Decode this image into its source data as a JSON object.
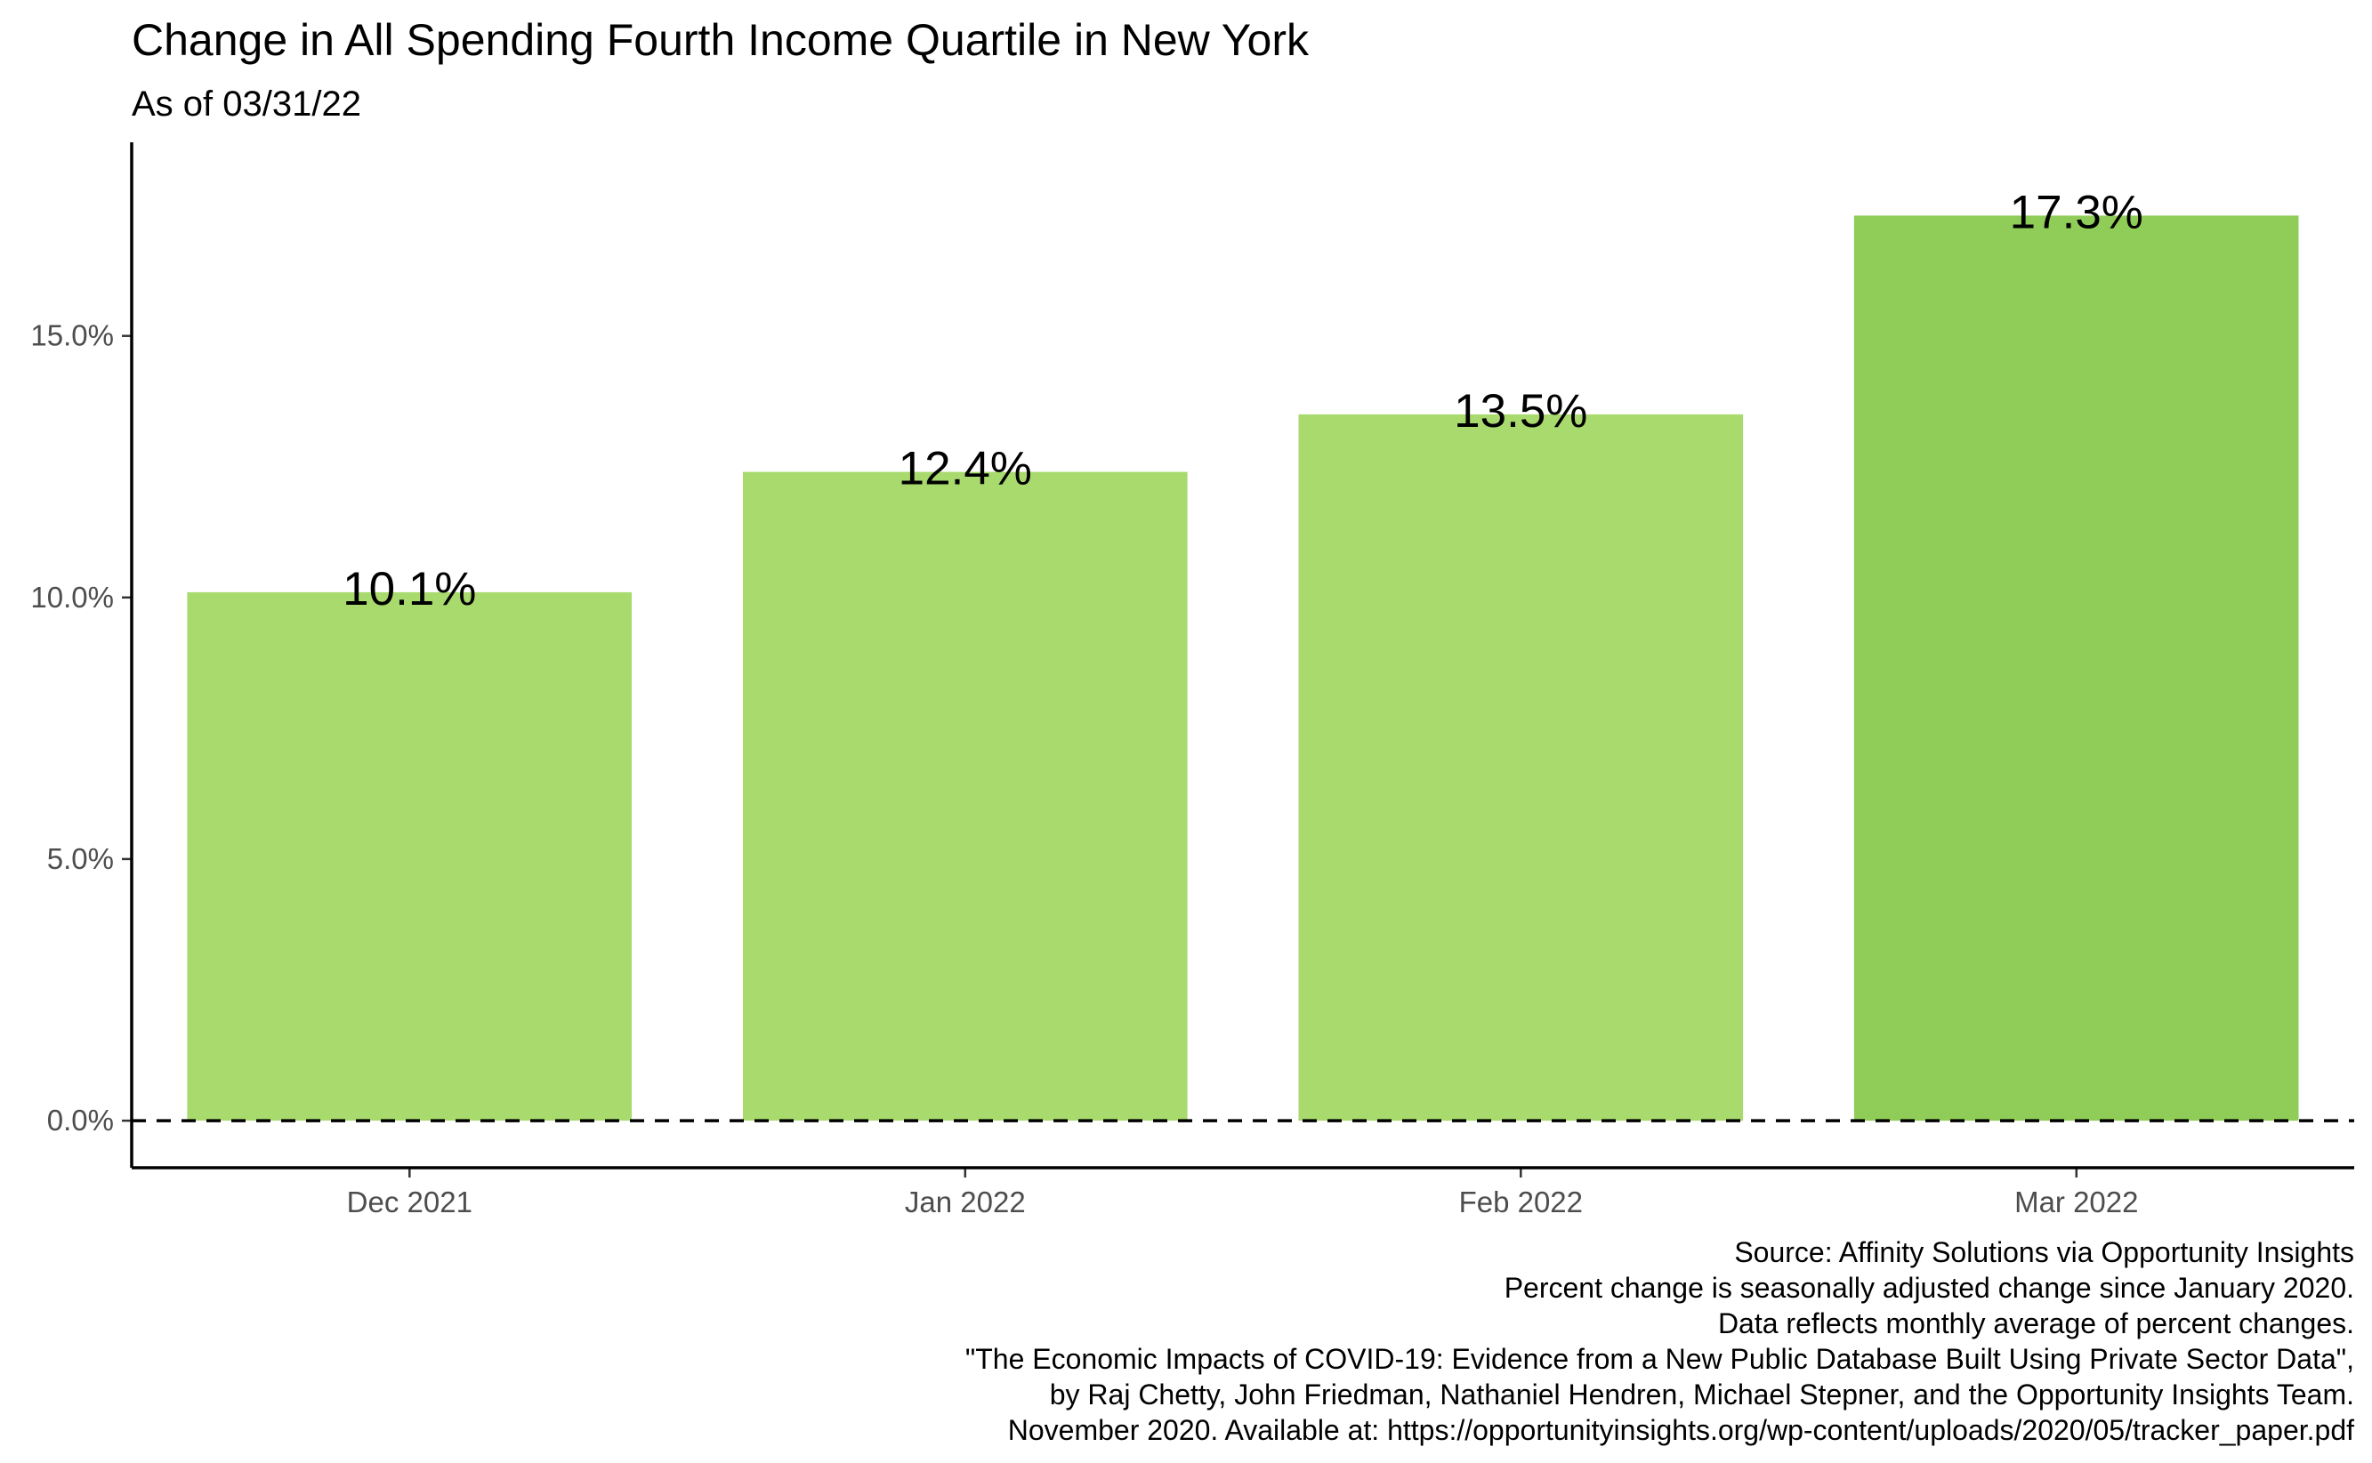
{
  "chart_data": {
    "type": "bar",
    "title": "Change in All Spending Fourth Income Quartile in New York",
    "subtitle": "As of 03/31/22",
    "categories": [
      "Dec 2021",
      "Jan 2022",
      "Feb 2022",
      "Mar 2022"
    ],
    "values": [
      10.1,
      12.4,
      13.5,
      17.3
    ],
    "value_labels": [
      "10.1%",
      "12.4%",
      "13.5%",
      "17.3%"
    ],
    "bar_colors": [
      "#a8da6e",
      "#a8da6e",
      "#a8da6e",
      "#8fcd58"
    ],
    "yticks": [
      0,
      5,
      10,
      15
    ],
    "ytick_labels": [
      "0.0%",
      "5.0%",
      "10.0%",
      "15.0%"
    ],
    "ylim": [
      -0.9,
      18.7
    ],
    "reference_line": {
      "y": 0,
      "style": "dashed"
    },
    "xlabel": "",
    "ylabel": "",
    "grid": false,
    "caption_lines": [
      "Source: Affinity Solutions via Opportunity Insights",
      "Percent change is seasonally adjusted change since January 2020.",
      "Data reflects monthly average of percent changes.",
      "\"The Economic Impacts of COVID-19: Evidence from a New Public Database Built Using Private Sector Data\",",
      "by Raj Chetty, John Friedman, Nathaniel Hendren, Michael Stepner, and the Opportunity Insights Team.",
      "November 2020. Available at: https://opportunityinsights.org/wp-content/uploads/2020/05/tracker_paper.pdf"
    ]
  }
}
